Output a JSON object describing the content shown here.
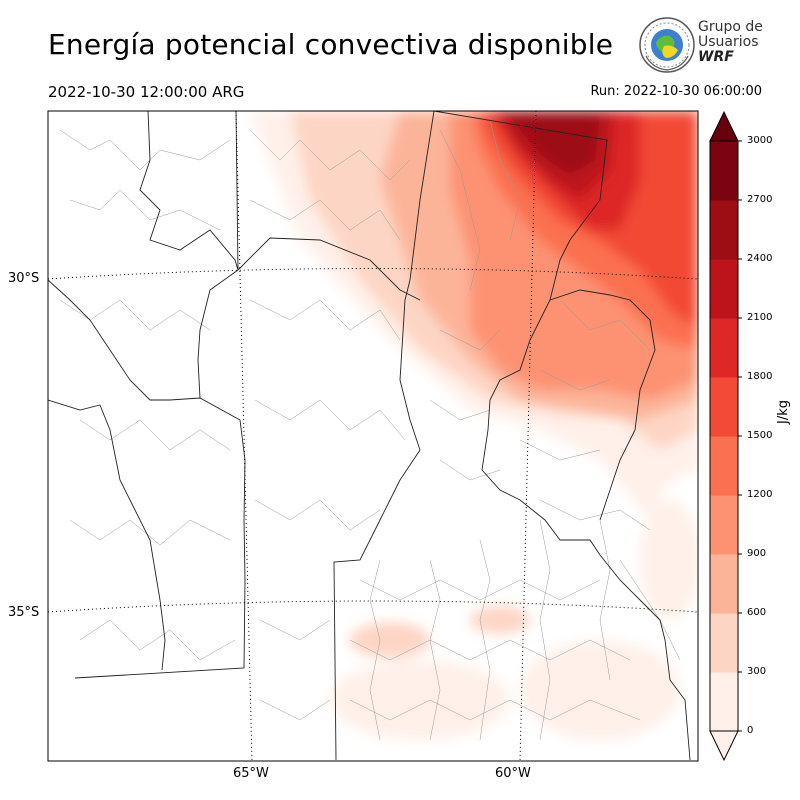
{
  "header": {
    "title": "Energía potencial convectiva disponible",
    "valid_time": "2022-10-30 12:00:00 ARG",
    "run_time": "Run: 2022-10-30 06:00:00"
  },
  "logo": {
    "line1": "Grupo de",
    "line2": "Usuarios",
    "line3": "WRF"
  },
  "map": {
    "lat_labels": [
      "30°S",
      "35°S"
    ],
    "lon_labels": [
      "65°W",
      "60°W"
    ]
  },
  "colorbar": {
    "unit": "J/kg",
    "ticks": [
      "0",
      "300",
      "600",
      "900",
      "1200",
      "1500",
      "1800",
      "2100",
      "2400",
      "2700",
      "3000"
    ],
    "colors": [
      "#fff0e9",
      "#fdd5c4",
      "#fcb499",
      "#fc9272",
      "#fb7050",
      "#f24a36",
      "#dd2826",
      "#bc141a",
      "#9c0d14",
      "#7a0510"
    ],
    "extend": "max"
  }
}
